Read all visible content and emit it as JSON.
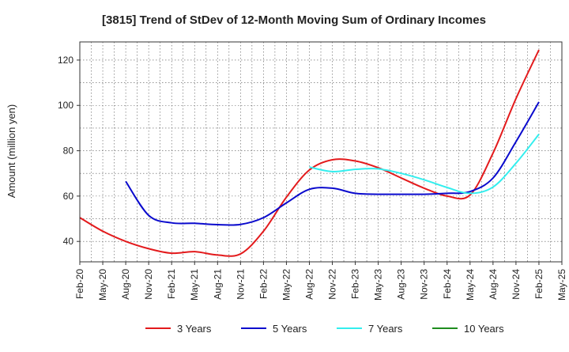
{
  "chart_data": {
    "type": "line",
    "title": "[3815]  Trend of StDev of 12-Month Moving Sum of Ordinary Incomes",
    "xlabel": "",
    "ylabel": "Amount (million yen)",
    "ylim": [
      31,
      128
    ],
    "yticks": [
      40,
      60,
      80,
      100,
      120
    ],
    "grid": true,
    "legend_position": "bottom",
    "categories": [
      "Feb-20",
      "May-20",
      "Aug-20",
      "Nov-20",
      "Feb-21",
      "May-21",
      "Aug-21",
      "Nov-21",
      "Feb-22",
      "May-22",
      "Aug-22",
      "Nov-22",
      "Feb-23",
      "May-23",
      "Aug-23",
      "Nov-23",
      "Feb-24",
      "May-24",
      "Aug-24",
      "Nov-24",
      "Feb-25",
      "May-25"
    ],
    "series": [
      {
        "name": "3 Years",
        "color": "#e31a1c",
        "values": [
          50.5,
          44.5,
          40,
          36.8,
          34.8,
          35.5,
          34,
          34.5,
          44.5,
          59.5,
          71.5,
          76,
          75.5,
          72.5,
          68,
          63.5,
          60,
          60.5,
          79,
          103,
          124.5,
          null
        ]
      },
      {
        "name": "5 Years",
        "color": "#0a0acd",
        "values": [
          null,
          null,
          66.5,
          51.5,
          48.2,
          48,
          47.4,
          47.5,
          50.5,
          57,
          63,
          63.5,
          61.2,
          60.8,
          60.8,
          60.8,
          61.2,
          62,
          68,
          84,
          101.5,
          null
        ]
      },
      {
        "name": "7 Years",
        "color": "#33eeee",
        "values": [
          null,
          null,
          null,
          null,
          null,
          null,
          null,
          null,
          null,
          null,
          72.8,
          70.8,
          71.8,
          72,
          70,
          67.2,
          63.8,
          61.2,
          64,
          74.5,
          87.3,
          null
        ]
      },
      {
        "name": "10 Years",
        "color": "#1e8c1e",
        "values": [
          null,
          null,
          null,
          null,
          null,
          null,
          null,
          null,
          null,
          null,
          null,
          null,
          null,
          null,
          null,
          null,
          null,
          null,
          null,
          null,
          null,
          null
        ]
      }
    ]
  }
}
